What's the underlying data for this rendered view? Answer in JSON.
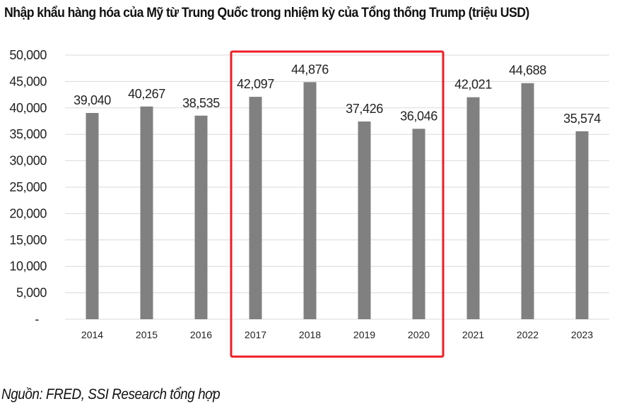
{
  "title": "Nhập khẩu hàng hóa của Mỹ từ Trung Quốc trong nhiệm kỳ của Tổng thống Trump (triệu USD)",
  "source": "Nguồn: FRED, SSI Research tổng hợp",
  "colors": {
    "bar": "#808080",
    "highlight": "#ee1c25",
    "grid": "#d9d9d9"
  },
  "chart_data": {
    "type": "bar",
    "title": "Nhập khẩu hàng hóa của Mỹ từ Trung Quốc trong nhiệm kỳ của Tổng thống Trump (triệu USD)",
    "xlabel": "",
    "ylabel": "",
    "categories": [
      "2014",
      "2015",
      "2016",
      "2017",
      "2018",
      "2019",
      "2020",
      "2021",
      "2022",
      "2023"
    ],
    "values": [
      39040,
      40267,
      38535,
      42097,
      44876,
      37426,
      36046,
      42021,
      44688,
      35574
    ],
    "data_labels": [
      "39,040",
      "40,267",
      "38,535",
      "42,097",
      "44,876",
      "37,426",
      "36,046",
      "42,021",
      "44,688",
      "35,574"
    ],
    "ylim": [
      0,
      50000
    ],
    "yticks": [
      0,
      5000,
      10000,
      15000,
      20000,
      25000,
      30000,
      35000,
      40000,
      45000,
      50000
    ],
    "ytick_labels": [
      "-",
      "5,000",
      "10,000",
      "15,000",
      "20,000",
      "25,000",
      "30,000",
      "35,000",
      "40,000",
      "45,000",
      "50,000"
    ],
    "grid": true,
    "legend": "none",
    "highlight_range": [
      "2017",
      "2020"
    ]
  }
}
